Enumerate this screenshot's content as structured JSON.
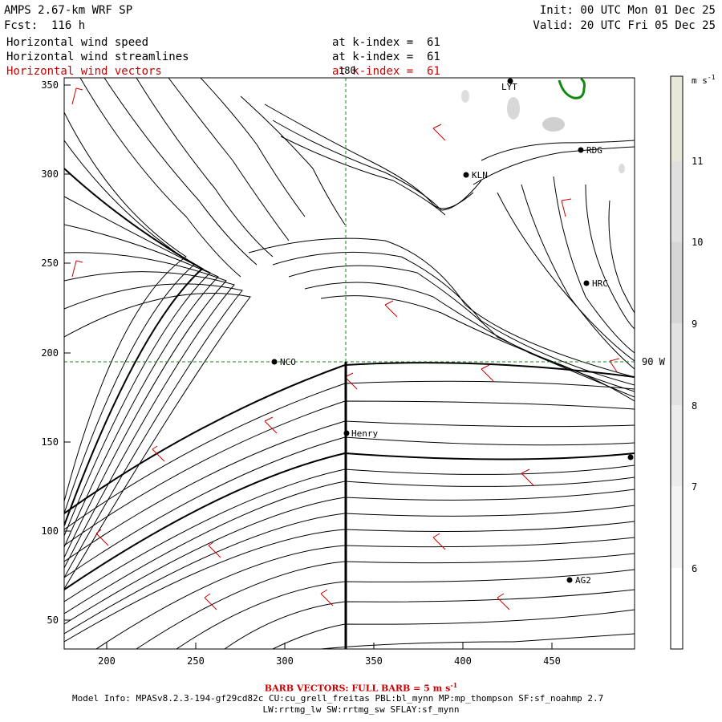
{
  "header": {
    "model_title": "AMPS 2.67-km WRF SP",
    "forecast": "Fcst:  116 h",
    "init": "Init: 00 UTC Mon 01 Dec 25",
    "valid": "Valid: 20 UTC Fri 05 Dec 25"
  },
  "fields": [
    {
      "label": "Horizontal wind speed",
      "level": "at k-index =  61",
      "color": "#000000"
    },
    {
      "label": "Horizontal wind streamlines",
      "level": "at k-index =  61",
      "color": "#000000"
    },
    {
      "label": "Horizontal wind vectors",
      "level": "at k-index =  61",
      "color": "#cc0000"
    }
  ],
  "map": {
    "x_ticks": [
      "200",
      "250",
      "300",
      "350",
      "400",
      "450"
    ],
    "y_ticks": [
      "350",
      "300",
      "250",
      "200",
      "150",
      "100",
      "50"
    ],
    "meridian_label": "180",
    "parallel_label": "90 W",
    "stations": [
      "LYT",
      "RDG",
      "KLN",
      "HRC",
      "NCO",
      "Henry",
      "AG2"
    ]
  },
  "colorbar": {
    "units": "m s",
    "units_exp": "-1",
    "labels": [
      "11",
      "10",
      "9",
      "8",
      "7",
      "6"
    ],
    "colors": [
      "#e8e8d8",
      "#e0e0e0",
      "#d6d6d6",
      "#e2e2e2",
      "#ececec",
      "#f4f4f4",
      "#ffffff"
    ]
  },
  "footer": {
    "barb_note": "BARB VECTORS: FULL BARB = 5 m s",
    "barb_exp": "-1",
    "model_info": "Model Info: MPASv8.2.3-194-gf29cd82c CU:cu_grell_freitas PBL:bl_mynn MP:mp_thompson SF:sf_noahmp 2.7",
    "physics": "LW:rrtmg_lw SW:rrtmg_sw SFLAY:sf_mynn"
  }
}
